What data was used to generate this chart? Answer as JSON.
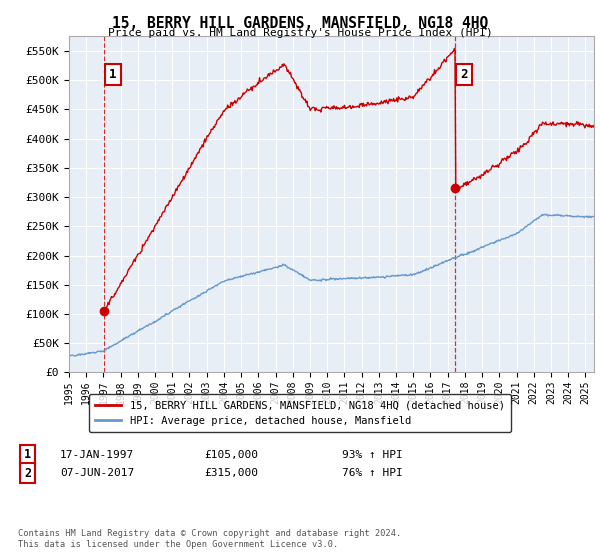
{
  "title": "15, BERRY HILL GARDENS, MANSFIELD, NG18 4HQ",
  "subtitle": "Price paid vs. HM Land Registry's House Price Index (HPI)",
  "ylabel_ticks": [
    "£0",
    "£50K",
    "£100K",
    "£150K",
    "£200K",
    "£250K",
    "£300K",
    "£350K",
    "£400K",
    "£450K",
    "£500K",
    "£550K"
  ],
  "ytick_values": [
    0,
    50000,
    100000,
    150000,
    200000,
    250000,
    300000,
    350000,
    400000,
    450000,
    500000,
    550000
  ],
  "ylim": [
    0,
    575000
  ],
  "xlim_start": 1995.0,
  "xlim_end": 2025.5,
  "sale1_x": 1997.04,
  "sale1_y": 105000,
  "sale2_x": 2017.43,
  "sale2_y": 315000,
  "sale1_date": "17-JAN-1997",
  "sale1_price": "£105,000",
  "sale1_hpi": "93% ↑ HPI",
  "sale2_date": "07-JUN-2017",
  "sale2_price": "£315,000",
  "sale2_hpi": "76% ↑ HPI",
  "line1_color": "#cc0000",
  "line2_color": "#6699cc",
  "plot_bg_color": "#e8eef5",
  "vline_color": "#cc0000",
  "legend1_label": "15, BERRY HILL GARDENS, MANSFIELD, NG18 4HQ (detached house)",
  "legend2_label": "HPI: Average price, detached house, Mansfield",
  "footnote": "Contains HM Land Registry data © Crown copyright and database right 2024.\nThis data is licensed under the Open Government Licence v3.0.",
  "background_color": "#ffffff",
  "grid_color": "#ffffff"
}
